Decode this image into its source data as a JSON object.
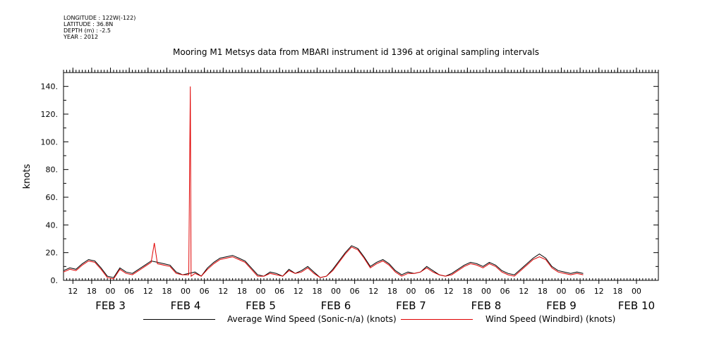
{
  "meta": {
    "longitude": "LONGITUDE : 122W(-122)",
    "latitude": "LATITUDE : 36.8N",
    "depth": "DEPTH (m) : -2.5",
    "year": "YEAR : 2012"
  },
  "colors": {
    "series_black": "#000000",
    "series_red": "#e00000"
  },
  "chart_data": {
    "type": "line",
    "title": "Mooring M1 Metsys data from MBARI instrument id 1396 at original sampling intervals",
    "ylabel": "knots",
    "xlabel": "",
    "ylim": [
      0,
      150
    ],
    "xlim": [
      "2012-02-02T09:00",
      "2012-02-10T07:00"
    ],
    "y_ticks": [
      "0.",
      "20.",
      "40.",
      "60.",
      "80.",
      "100.",
      "120.",
      "140."
    ],
    "x_hour_ticks": [
      {
        "t": "2012-02-02T12:00",
        "label": "12"
      },
      {
        "t": "2012-02-02T18:00",
        "label": "18"
      },
      {
        "t": "2012-02-03T00:00",
        "label": "00"
      },
      {
        "t": "2012-02-03T06:00",
        "label": "06"
      },
      {
        "t": "2012-02-03T12:00",
        "label": "12"
      },
      {
        "t": "2012-02-03T18:00",
        "label": "18"
      },
      {
        "t": "2012-02-04T00:00",
        "label": "00"
      },
      {
        "t": "2012-02-04T06:00",
        "label": "06"
      },
      {
        "t": "2012-02-04T12:00",
        "label": "12"
      },
      {
        "t": "2012-02-04T18:00",
        "label": "18"
      },
      {
        "t": "2012-02-05T00:00",
        "label": "00"
      },
      {
        "t": "2012-02-05T06:00",
        "label": "06"
      },
      {
        "t": "2012-02-05T12:00",
        "label": "12"
      },
      {
        "t": "2012-02-05T18:00",
        "label": "18"
      },
      {
        "t": "2012-02-06T00:00",
        "label": "00"
      },
      {
        "t": "2012-02-06T06:00",
        "label": "06"
      },
      {
        "t": "2012-02-06T12:00",
        "label": "12"
      },
      {
        "t": "2012-02-06T18:00",
        "label": "18"
      },
      {
        "t": "2012-02-07T00:00",
        "label": "00"
      },
      {
        "t": "2012-02-07T06:00",
        "label": "06"
      },
      {
        "t": "2012-02-07T12:00",
        "label": "12"
      },
      {
        "t": "2012-02-07T18:00",
        "label": "18"
      },
      {
        "t": "2012-02-08T00:00",
        "label": "00"
      },
      {
        "t": "2012-02-08T06:00",
        "label": "06"
      },
      {
        "t": "2012-02-08T12:00",
        "label": "12"
      },
      {
        "t": "2012-02-08T18:00",
        "label": "18"
      },
      {
        "t": "2012-02-09T00:00",
        "label": "00"
      },
      {
        "t": "2012-02-09T06:00",
        "label": "06"
      },
      {
        "t": "2012-02-09T12:00",
        "label": "12"
      },
      {
        "t": "2012-02-09T18:00",
        "label": "18"
      },
      {
        "t": "2012-02-10T00:00",
        "label": "00"
      }
    ],
    "x_day_labels": [
      {
        "t": "2012-02-03T00:00",
        "label": "FEB  3"
      },
      {
        "t": "2012-02-04T00:00",
        "label": "FEB  4"
      },
      {
        "t": "2012-02-05T00:00",
        "label": "FEB  5"
      },
      {
        "t": "2012-02-06T00:00",
        "label": "FEB  6"
      },
      {
        "t": "2012-02-07T00:00",
        "label": "FEB  7"
      },
      {
        "t": "2012-02-08T00:00",
        "label": "FEB  8"
      },
      {
        "t": "2012-02-09T00:00",
        "label": "FEB  9"
      },
      {
        "t": "2012-02-10T00:00",
        "label": "FEB 10"
      }
    ],
    "series": [
      {
        "name": "Average Wind Speed (Sonic-n/a) (knots)",
        "color": "#000000",
        "points": [
          [
            "2012-02-02T09:00",
            7
          ],
          [
            "2012-02-02T11:00",
            9
          ],
          [
            "2012-02-02T13:00",
            8
          ],
          [
            "2012-02-02T15:00",
            12
          ],
          [
            "2012-02-02T17:00",
            15
          ],
          [
            "2012-02-02T19:00",
            14
          ],
          [
            "2012-02-02T21:00",
            9
          ],
          [
            "2012-02-02T23:00",
            3
          ],
          [
            "2012-02-03T01:00",
            2
          ],
          [
            "2012-02-03T03:00",
            9
          ],
          [
            "2012-02-03T05:00",
            6
          ],
          [
            "2012-02-03T07:00",
            5
          ],
          [
            "2012-02-03T09:00",
            8
          ],
          [
            "2012-02-03T11:00",
            11
          ],
          [
            "2012-02-03T13:00",
            14
          ],
          [
            "2012-02-03T15:00",
            13
          ],
          [
            "2012-02-03T17:00",
            12
          ],
          [
            "2012-02-03T19:00",
            11
          ],
          [
            "2012-02-03T21:00",
            6
          ],
          [
            "2012-02-03T23:00",
            4
          ],
          [
            "2012-02-04T01:00",
            5
          ],
          [
            "2012-02-04T03:00",
            6
          ],
          [
            "2012-02-04T05:00",
            3
          ],
          [
            "2012-02-04T07:00",
            9
          ],
          [
            "2012-02-04T09:00",
            13
          ],
          [
            "2012-02-04T11:00",
            16
          ],
          [
            "2012-02-04T13:00",
            17
          ],
          [
            "2012-02-04T15:00",
            18
          ],
          [
            "2012-02-04T17:00",
            16
          ],
          [
            "2012-02-04T19:00",
            14
          ],
          [
            "2012-02-04T21:00",
            9
          ],
          [
            "2012-02-04T23:00",
            4
          ],
          [
            "2012-02-05T01:00",
            3
          ],
          [
            "2012-02-05T03:00",
            6
          ],
          [
            "2012-02-05T05:00",
            5
          ],
          [
            "2012-02-05T07:00",
            3
          ],
          [
            "2012-02-05T09:00",
            8
          ],
          [
            "2012-02-05T11:00",
            5
          ],
          [
            "2012-02-05T13:00",
            7
          ],
          [
            "2012-02-05T15:00",
            10
          ],
          [
            "2012-02-05T17:00",
            6
          ],
          [
            "2012-02-05T19:00",
            2
          ],
          [
            "2012-02-05T21:00",
            3
          ],
          [
            "2012-02-05T23:00",
            8
          ],
          [
            "2012-02-06T01:00",
            14
          ],
          [
            "2012-02-06T03:00",
            20
          ],
          [
            "2012-02-06T05:00",
            25
          ],
          [
            "2012-02-06T07:00",
            23
          ],
          [
            "2012-02-06T09:00",
            17
          ],
          [
            "2012-02-06T11:00",
            10
          ],
          [
            "2012-02-06T13:00",
            13
          ],
          [
            "2012-02-06T15:00",
            15
          ],
          [
            "2012-02-06T17:00",
            12
          ],
          [
            "2012-02-06T19:00",
            7
          ],
          [
            "2012-02-06T21:00",
            4
          ],
          [
            "2012-02-06T23:00",
            6
          ],
          [
            "2012-02-07T01:00",
            5
          ],
          [
            "2012-02-07T03:00",
            6
          ],
          [
            "2012-02-07T05:00",
            10
          ],
          [
            "2012-02-07T07:00",
            7
          ],
          [
            "2012-02-07T09:00",
            4
          ],
          [
            "2012-02-07T11:00",
            3
          ],
          [
            "2012-02-07T13:00",
            5
          ],
          [
            "2012-02-07T15:00",
            8
          ],
          [
            "2012-02-07T17:00",
            11
          ],
          [
            "2012-02-07T19:00",
            13
          ],
          [
            "2012-02-07T21:00",
            12
          ],
          [
            "2012-02-07T23:00",
            10
          ],
          [
            "2012-02-08T01:00",
            13
          ],
          [
            "2012-02-08T03:00",
            11
          ],
          [
            "2012-02-08T05:00",
            7
          ],
          [
            "2012-02-08T07:00",
            5
          ],
          [
            "2012-02-08T09:00",
            4
          ],
          [
            "2012-02-08T11:00",
            8
          ],
          [
            "2012-02-08T13:00",
            12
          ],
          [
            "2012-02-08T15:00",
            16
          ],
          [
            "2012-02-08T17:00",
            19
          ],
          [
            "2012-02-08T19:00",
            16
          ],
          [
            "2012-02-08T21:00",
            10
          ],
          [
            "2012-02-08T23:00",
            7
          ],
          [
            "2012-02-09T01:00",
            6
          ],
          [
            "2012-02-09T03:00",
            5
          ],
          [
            "2012-02-09T05:00",
            6
          ],
          [
            "2012-02-09T07:00",
            5
          ]
        ]
      },
      {
        "name": "Wind Speed (Windbird) (knots)",
        "color": "#e00000",
        "points": [
          [
            "2012-02-02T09:00",
            6
          ],
          [
            "2012-02-02T11:00",
            8
          ],
          [
            "2012-02-02T13:00",
            7
          ],
          [
            "2012-02-02T15:00",
            11
          ],
          [
            "2012-02-02T17:00",
            14
          ],
          [
            "2012-02-02T19:00",
            13
          ],
          [
            "2012-02-02T21:00",
            8
          ],
          [
            "2012-02-02T23:00",
            2
          ],
          [
            "2012-02-03T01:00",
            1
          ],
          [
            "2012-02-03T03:00",
            8
          ],
          [
            "2012-02-03T05:00",
            5
          ],
          [
            "2012-02-03T07:00",
            4
          ],
          [
            "2012-02-03T09:00",
            7
          ],
          [
            "2012-02-03T11:00",
            10
          ],
          [
            "2012-02-03T13:00",
            13
          ],
          [
            "2012-02-03T14:00",
            27
          ],
          [
            "2012-02-03T15:00",
            12
          ],
          [
            "2012-02-03T17:00",
            11
          ],
          [
            "2012-02-03T19:00",
            10
          ],
          [
            "2012-02-03T21:00",
            5
          ],
          [
            "2012-02-03T23:00",
            4
          ],
          [
            "2012-02-04T01:00",
            4
          ],
          [
            "2012-02-04T01:30",
            140
          ],
          [
            "2012-02-04T01:45",
            3
          ],
          [
            "2012-02-04T03:00",
            5
          ],
          [
            "2012-02-04T05:00",
            3
          ],
          [
            "2012-02-04T07:00",
            8
          ],
          [
            "2012-02-04T09:00",
            12
          ],
          [
            "2012-02-04T11:00",
            15
          ],
          [
            "2012-02-04T13:00",
            16
          ],
          [
            "2012-02-04T15:00",
            17
          ],
          [
            "2012-02-04T17:00",
            15
          ],
          [
            "2012-02-04T19:00",
            13
          ],
          [
            "2012-02-04T21:00",
            8
          ],
          [
            "2012-02-04T23:00",
            3
          ],
          [
            "2012-02-05T01:00",
            3
          ],
          [
            "2012-02-05T03:00",
            5
          ],
          [
            "2012-02-05T05:00",
            4
          ],
          [
            "2012-02-05T07:00",
            3
          ],
          [
            "2012-02-05T09:00",
            7
          ],
          [
            "2012-02-05T11:00",
            5
          ],
          [
            "2012-02-05T13:00",
            6
          ],
          [
            "2012-02-05T15:00",
            9
          ],
          [
            "2012-02-05T17:00",
            5
          ],
          [
            "2012-02-05T19:00",
            2
          ],
          [
            "2012-02-05T21:00",
            3
          ],
          [
            "2012-02-05T23:00",
            7
          ],
          [
            "2012-02-06T01:00",
            13
          ],
          [
            "2012-02-06T03:00",
            19
          ],
          [
            "2012-02-06T05:00",
            24
          ],
          [
            "2012-02-06T07:00",
            22
          ],
          [
            "2012-02-06T09:00",
            16
          ],
          [
            "2012-02-06T11:00",
            9
          ],
          [
            "2012-02-06T13:00",
            12
          ],
          [
            "2012-02-06T15:00",
            14
          ],
          [
            "2012-02-06T17:00",
            11
          ],
          [
            "2012-02-06T19:00",
            6
          ],
          [
            "2012-02-06T21:00",
            3
          ],
          [
            "2012-02-06T23:00",
            5
          ],
          [
            "2012-02-07T01:00",
            5
          ],
          [
            "2012-02-07T03:00",
            6
          ],
          [
            "2012-02-07T05:00",
            9
          ],
          [
            "2012-02-07T07:00",
            6
          ],
          [
            "2012-02-07T09:00",
            4
          ],
          [
            "2012-02-07T11:00",
            3
          ],
          [
            "2012-02-07T13:00",
            4
          ],
          [
            "2012-02-07T15:00",
            7
          ],
          [
            "2012-02-07T17:00",
            10
          ],
          [
            "2012-02-07T19:00",
            12
          ],
          [
            "2012-02-07T21:00",
            11
          ],
          [
            "2012-02-07T23:00",
            9
          ],
          [
            "2012-02-08T01:00",
            12
          ],
          [
            "2012-02-08T03:00",
            10
          ],
          [
            "2012-02-08T05:00",
            6
          ],
          [
            "2012-02-08T07:00",
            4
          ],
          [
            "2012-02-08T09:00",
            3
          ],
          [
            "2012-02-08T11:00",
            7
          ],
          [
            "2012-02-08T13:00",
            11
          ],
          [
            "2012-02-08T15:00",
            15
          ],
          [
            "2012-02-08T17:00",
            17
          ],
          [
            "2012-02-08T19:00",
            15
          ],
          [
            "2012-02-08T21:00",
            9
          ],
          [
            "2012-02-08T23:00",
            6
          ],
          [
            "2012-02-09T01:00",
            5
          ],
          [
            "2012-02-09T03:00",
            4
          ],
          [
            "2012-02-09T05:00",
            5
          ],
          [
            "2012-02-09T07:00",
            4
          ]
        ]
      }
    ]
  }
}
